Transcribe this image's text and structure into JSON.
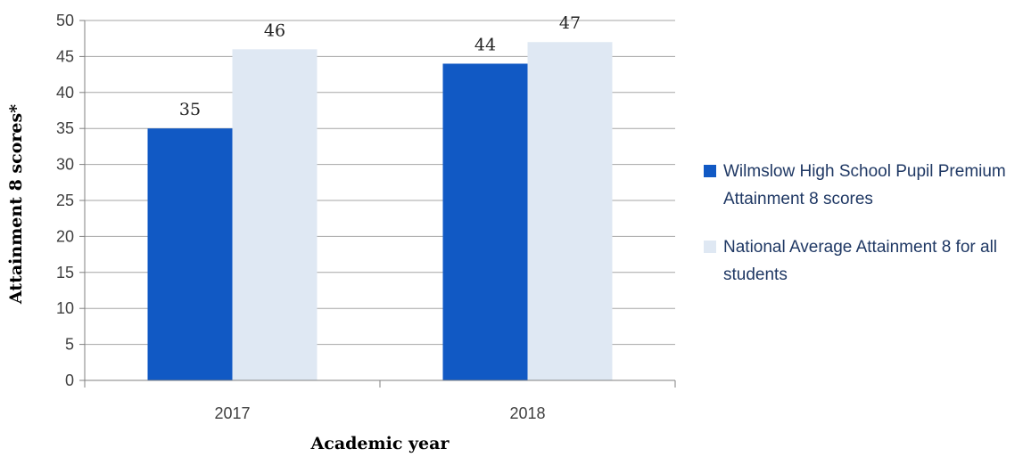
{
  "chart_data": {
    "type": "bar",
    "categories": [
      "2017",
      "2018"
    ],
    "series": [
      {
        "name": "Wilmslow High School Pupil Premium Attainment 8 scores",
        "values": [
          35,
          44
        ],
        "color": "#1159c4"
      },
      {
        "name": "National Average Attainment 8 for all students",
        "values": [
          46,
          47
        ],
        "color": "#dfe8f3"
      }
    ],
    "title": "",
    "xlabel": "Academic year",
    "ylabel": "Attainment 8 scores*",
    "ylim": [
      0,
      50
    ],
    "yticks": [
      0,
      5,
      10,
      15,
      20,
      25,
      30,
      35,
      40,
      45,
      50
    ],
    "grid": true,
    "legend": "right",
    "data_labels": true,
    "gridline_color": "#a6a6a6",
    "axis_color": "#808080"
  }
}
